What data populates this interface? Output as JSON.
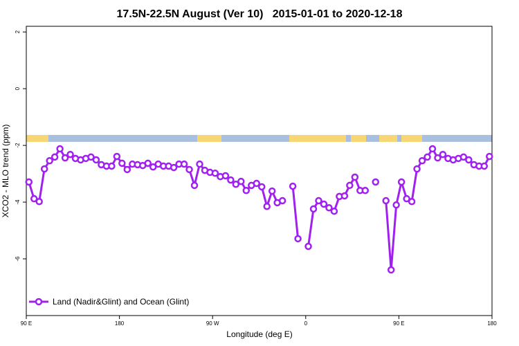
{
  "chart_data": {
    "type": "line",
    "title": "17.5N-22.5N August (Ver 10)   2015-01-01 to 2020-12-18",
    "xlabel": "Longitude (deg E)",
    "ylabel": "XCO2 - MLO trend (ppm)",
    "xlim": [
      90,
      540
    ],
    "ylim": [
      -8,
      2.2
    ],
    "xticks": [
      {
        "value": 90,
        "label": "90 E"
      },
      180,
      {
        "value": 270,
        "label": "90 W"
      },
      {
        "value": 360,
        "label": "0"
      },
      {
        "value": 450,
        "label": "90 E"
      },
      {
        "value": 540,
        "label": "180"
      }
    ],
    "yticks": [
      2,
      0,
      -2,
      -4,
      -6
    ],
    "legend": "bottom-left",
    "x": [
      92.5,
      97.5,
      102.5,
      107.5,
      112.5,
      117.5,
      122.5,
      127.5,
      132.5,
      137.5,
      142.5,
      147.5,
      152.5,
      157.5,
      162.5,
      167.5,
      172.5,
      177.5,
      182.5,
      187.5,
      192.5,
      197.5,
      202.5,
      207.5,
      212.5,
      217.5,
      222.5,
      227.5,
      232.5,
      237.5,
      242.5,
      247.5,
      252.5,
      257.5,
      262.5,
      267.5,
      272.5,
      277.5,
      282.5,
      287.5,
      292.5,
      297.5,
      302.5,
      307.5,
      312.5,
      317.5,
      322.5,
      327.5,
      332.5,
      337.5,
      342.5,
      347.5,
      352.5,
      357.5,
      362.5,
      367.5,
      372.5,
      377.5,
      382.5,
      387.5,
      392.5,
      397.5,
      402.5,
      407.5,
      412.5,
      417.5,
      422.5,
      427.5,
      432.5,
      437.5,
      442.5,
      447.5,
      452.5,
      457.5,
      462.5,
      467.5,
      472.5,
      477.5,
      482.5,
      487.5,
      492.5,
      497.5,
      502.5,
      507.5,
      512.5,
      517.5,
      522.5,
      527.5,
      532.5,
      537.5
    ],
    "series": [
      {
        "name": "Land (Nadir&Glint) and Ocean (Glint)",
        "color": "#a020f0",
        "values": [
          -3.29,
          -3.88,
          -3.98,
          -2.83,
          -2.54,
          -2.41,
          -2.12,
          -2.44,
          -2.32,
          -2.46,
          -2.51,
          -2.46,
          -2.41,
          -2.51,
          -2.68,
          -2.73,
          -2.73,
          -2.39,
          -2.63,
          -2.85,
          -2.66,
          -2.68,
          -2.71,
          -2.63,
          -2.76,
          -2.66,
          -2.73,
          -2.73,
          -2.78,
          -2.66,
          -2.66,
          -2.85,
          -3.41,
          -2.66,
          -2.88,
          -2.95,
          -2.98,
          -3.1,
          -3.07,
          -3.22,
          -3.37,
          -3.27,
          -3.59,
          -3.41,
          -3.34,
          -3.46,
          -4.15,
          -3.61,
          -4.02,
          -3.95,
          null,
          -3.44,
          -5.29,
          null,
          -5.56,
          -4.24,
          -3.95,
          -4.07,
          -4.2,
          -4.32,
          -3.8,
          -3.78,
          -3.41,
          -3.12,
          -3.59,
          -3.59,
          null,
          -3.29,
          null,
          -3.95,
          -6.39,
          -4.1,
          -3.29,
          -3.88,
          -3.98,
          -2.83,
          -2.54,
          -2.41,
          -2.12,
          -2.44,
          -2.32,
          -2.46,
          -2.51,
          -2.46,
          -2.41,
          -2.51,
          -2.68,
          -2.73,
          -2.73,
          -2.39
        ]
      }
    ]
  }
}
